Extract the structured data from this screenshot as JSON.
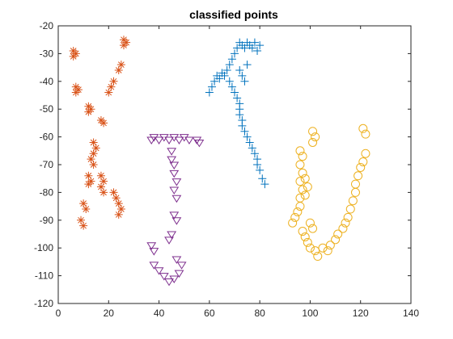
{
  "chart_data": {
    "type": "scatter",
    "title": "classified points",
    "xlabel": "",
    "ylabel": "",
    "xlim": [
      0,
      140
    ],
    "ylim": [
      -120,
      -20
    ],
    "xticks": [
      0,
      20,
      40,
      60,
      80,
      100,
      120,
      140
    ],
    "yticks": [
      -120,
      -110,
      -100,
      -90,
      -80,
      -70,
      -60,
      -50,
      -40,
      -30,
      -20
    ],
    "grid": false,
    "legend": "none",
    "series": [
      {
        "marker": "asterisk",
        "color": "#D95319",
        "points": [
          [
            6,
            -29
          ],
          [
            7,
            -30
          ],
          [
            6,
            -31
          ],
          [
            7,
            -42
          ],
          [
            8,
            -43
          ],
          [
            7,
            -44
          ],
          [
            12,
            -49
          ],
          [
            13,
            -50
          ],
          [
            12,
            -51
          ],
          [
            20,
            -44
          ],
          [
            21,
            -42
          ],
          [
            22,
            -40
          ],
          [
            24,
            -36
          ],
          [
            25,
            -34
          ],
          [
            26,
            -27
          ],
          [
            27,
            -26
          ],
          [
            26,
            -25
          ],
          [
            17,
            -54
          ],
          [
            18,
            -55
          ],
          [
            14,
            -62
          ],
          [
            15,
            -64
          ],
          [
            14,
            -66
          ],
          [
            13,
            -68
          ],
          [
            14,
            -70
          ],
          [
            12,
            -74
          ],
          [
            13,
            -76
          ],
          [
            12,
            -77
          ],
          [
            17,
            -74
          ],
          [
            18,
            -76
          ],
          [
            17,
            -78
          ],
          [
            18,
            -80
          ],
          [
            22,
            -80
          ],
          [
            23,
            -82
          ],
          [
            24,
            -84
          ],
          [
            25,
            -86
          ],
          [
            24,
            -88
          ],
          [
            10,
            -84
          ],
          [
            11,
            -86
          ],
          [
            9,
            -90
          ],
          [
            10,
            -92
          ]
        ]
      },
      {
        "marker": "plus",
        "color": "#0072BD",
        "points": [
          [
            60,
            -44
          ],
          [
            61,
            -42
          ],
          [
            62,
            -40
          ],
          [
            63,
            -38
          ],
          [
            64,
            -39
          ],
          [
            65,
            -37
          ],
          [
            66,
            -38
          ],
          [
            67,
            -36
          ],
          [
            68,
            -34
          ],
          [
            69,
            -32
          ],
          [
            70,
            -30
          ],
          [
            71,
            -28
          ],
          [
            72,
            -26
          ],
          [
            73,
            -27
          ],
          [
            74,
            -28
          ],
          [
            75,
            -26
          ],
          [
            76,
            -27
          ],
          [
            77,
            -28
          ],
          [
            78,
            -26
          ],
          [
            79,
            -29
          ],
          [
            80,
            -27
          ],
          [
            68,
            -40
          ],
          [
            69,
            -42
          ],
          [
            70,
            -44
          ],
          [
            71,
            -46
          ],
          [
            72,
            -48
          ],
          [
            72,
            -50
          ],
          [
            72,
            -52
          ],
          [
            73,
            -54
          ],
          [
            73,
            -56
          ],
          [
            74,
            -58
          ],
          [
            75,
            -60
          ],
          [
            76,
            -62
          ],
          [
            77,
            -64
          ],
          [
            78,
            -66
          ],
          [
            79,
            -68
          ],
          [
            79,
            -70
          ],
          [
            80,
            -72
          ],
          [
            81,
            -75
          ],
          [
            82,
            -77
          ],
          [
            72,
            -36
          ],
          [
            73,
            -38
          ],
          [
            74,
            -40
          ],
          [
            75,
            -34
          ]
        ]
      },
      {
        "marker": "triangle-down",
        "color": "#7E2F8E",
        "points": [
          [
            37,
            -61
          ],
          [
            38,
            -60
          ],
          [
            40,
            -61
          ],
          [
            42,
            -60
          ],
          [
            44,
            -61
          ],
          [
            46,
            -60
          ],
          [
            48,
            -61
          ],
          [
            50,
            -60
          ],
          [
            52,
            -61
          ],
          [
            55,
            -61
          ],
          [
            56,
            -62
          ],
          [
            45,
            -65
          ],
          [
            45,
            -68
          ],
          [
            46,
            -70
          ],
          [
            46,
            -73
          ],
          [
            47,
            -76
          ],
          [
            46,
            -79
          ],
          [
            47,
            -82
          ],
          [
            46,
            -88
          ],
          [
            47,
            -90
          ],
          [
            45,
            -95
          ],
          [
            44,
            -97
          ],
          [
            37,
            -99
          ],
          [
            38,
            -101
          ],
          [
            38,
            -106
          ],
          [
            40,
            -108
          ],
          [
            42,
            -110
          ],
          [
            44,
            -112
          ],
          [
            46,
            -111
          ],
          [
            48,
            -109
          ],
          [
            49,
            -106
          ],
          [
            47,
            -104
          ]
        ]
      },
      {
        "marker": "circle",
        "color": "#EDB120",
        "points": [
          [
            93,
            -91
          ],
          [
            94,
            -89
          ],
          [
            95,
            -87
          ],
          [
            96,
            -85
          ],
          [
            96,
            -82
          ],
          [
            97,
            -79
          ],
          [
            96,
            -76
          ],
          [
            97,
            -73
          ],
          [
            96,
            -70
          ],
          [
            97,
            -67
          ],
          [
            96,
            -65
          ],
          [
            97,
            -94
          ],
          [
            98,
            -96
          ],
          [
            99,
            -98
          ],
          [
            100,
            -100
          ],
          [
            102,
            -101
          ],
          [
            103,
            -103
          ],
          [
            105,
            -100
          ],
          [
            107,
            -101
          ],
          [
            108,
            -99
          ],
          [
            110,
            -97
          ],
          [
            111,
            -95
          ],
          [
            113,
            -93
          ],
          [
            114,
            -91
          ],
          [
            115,
            -89
          ],
          [
            116,
            -86
          ],
          [
            117,
            -83
          ],
          [
            118,
            -80
          ],
          [
            118,
            -77
          ],
          [
            119,
            -74
          ],
          [
            120,
            -71
          ],
          [
            121,
            -69
          ],
          [
            122,
            -66
          ],
          [
            122,
            -59
          ],
          [
            121,
            -57
          ],
          [
            101,
            -62
          ],
          [
            102,
            -60
          ],
          [
            101,
            -58
          ],
          [
            98,
            -75
          ],
          [
            99,
            -78
          ],
          [
            98,
            -81
          ],
          [
            100,
            -91
          ],
          [
            101,
            -93
          ]
        ]
      }
    ]
  }
}
